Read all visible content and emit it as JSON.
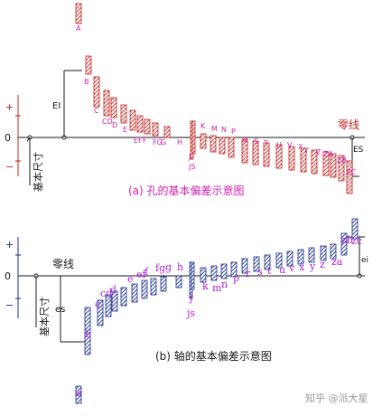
{
  "colors": {
    "hole": "#c0201c",
    "shaft": "#1a2f8a",
    "hole_label": "#d020b0",
    "shaft_label": "#b020d8",
    "axis": "#1a1a1a",
    "tick": "#c0201c",
    "marker": "#c0201c"
  },
  "hole_diagram": {
    "plus": "+",
    "zero": "0",
    "minus": "−",
    "basic_size": "基本尺寸",
    "zero_line": "零线",
    "EI": "EI",
    "ES": "ES",
    "caption": "(a)  孔的基本偏差示意图",
    "letters": [
      "A",
      "B",
      "C",
      "CD",
      "D",
      "E",
      "EF",
      "F",
      "FG",
      "G",
      "H",
      "J",
      "JS",
      "K",
      "M",
      "N",
      "P",
      "R",
      "S",
      "T",
      "U",
      "V",
      "X",
      "Y",
      "Z",
      "ZA",
      "ZB",
      "ZC"
    ]
  },
  "shaft_diagram": {
    "plus": "+",
    "zero": "0",
    "minus": "−",
    "basic_size": "基本尺寸",
    "zero_line": "零线",
    "es": "es",
    "ei": "ei",
    "caption": "(b)  轴的基本偏差示意图",
    "letters": [
      "a",
      "b",
      "c",
      "cd",
      "d",
      "e",
      "ef",
      "f",
      "fg",
      "g",
      "h",
      "j",
      "js",
      "k",
      "m",
      "n",
      "p",
      "r",
      "s",
      "t",
      "u",
      "v",
      "x",
      "y",
      "z",
      "za",
      "zb",
      "zc"
    ]
  },
  "watermark": "知乎 @派大星"
}
